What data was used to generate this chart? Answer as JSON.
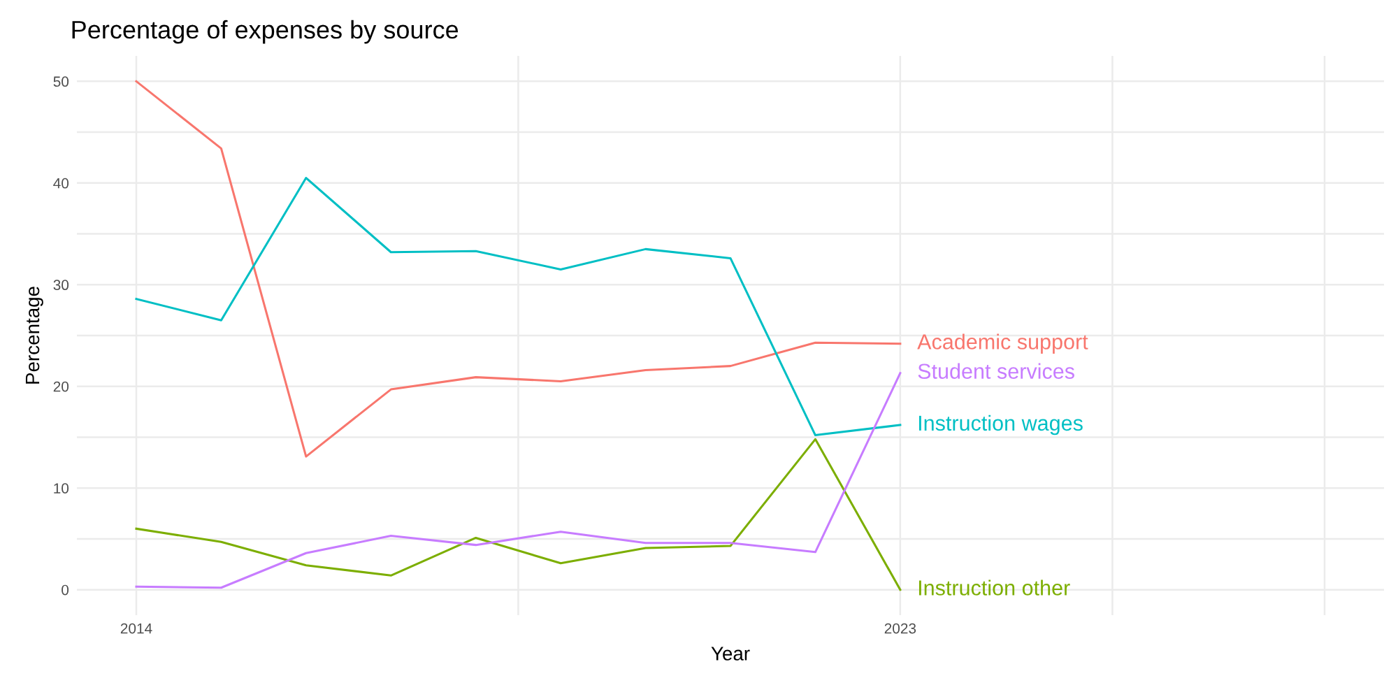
{
  "chart_data": {
    "type": "line",
    "title": "Percentage of expenses by source",
    "xlabel": "Year",
    "ylabel": "Percentage",
    "x": [
      2014,
      2015,
      2016,
      2017,
      2018,
      2019,
      2020,
      2021,
      2022,
      2023
    ],
    "series": [
      {
        "name": "Academic support",
        "color": "#F8766D",
        "values": [
          50,
          43.4,
          13.1,
          19.7,
          20.9,
          20.5,
          21.6,
          22.0,
          24.3,
          24.2
        ]
      },
      {
        "name": "Instruction other",
        "color": "#7CAE00",
        "values": [
          6.0,
          4.7,
          2.4,
          1.4,
          5.1,
          2.6,
          4.1,
          4.3,
          14.8,
          0
        ]
      },
      {
        "name": "Instruction wages",
        "color": "#00BFC4",
        "values": [
          28.6,
          26.5,
          40.5,
          33.2,
          33.3,
          31.5,
          33.5,
          32.6,
          15.2,
          16.2
        ]
      },
      {
        "name": "Student services",
        "color": "#C77CFF",
        "values": [
          0.3,
          0.2,
          3.6,
          5.3,
          4.4,
          5.7,
          4.6,
          4.6,
          3.7,
          21.3
        ]
      }
    ],
    "xlim": [
      2013.3,
      2028.7
    ],
    "xticks": [
      2014,
      {
        "value": 2018.5,
        "label": null
      },
      2023,
      {
        "value": 2025.5,
        "label": null
      },
      {
        "value": 2028,
        "label": null
      }
    ],
    "ylim": [
      -2.5,
      52.5
    ],
    "yticks": [
      0,
      {
        "value": 5,
        "label": null
      },
      10,
      {
        "value": 15,
        "label": null
      },
      20,
      {
        "value": 25,
        "label": null
      },
      30,
      {
        "value": 35,
        "label": null
      },
      40,
      {
        "value": 45,
        "label": null
      },
      50
    ],
    "grid": true,
    "legend": false,
    "line_style": "solid",
    "marker": "none"
  }
}
